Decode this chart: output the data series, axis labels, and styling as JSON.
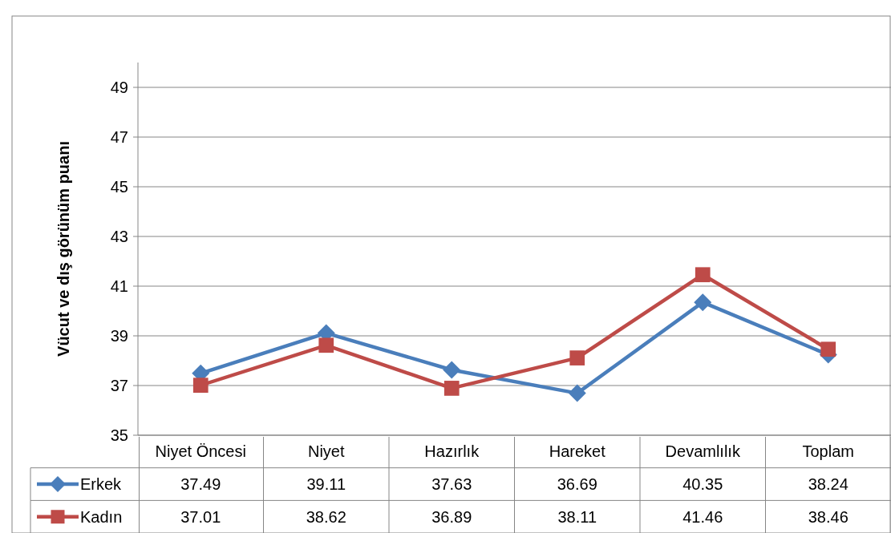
{
  "chart_data": {
    "type": "line",
    "ylabel": "Vücut ve dış görünüm puanı",
    "categories": [
      "Niyet Öncesi",
      "Niyet",
      "Hazırlık",
      "Hareket",
      "Devamlılık",
      "Toplam"
    ],
    "series": [
      {
        "name": "Erkek",
        "color": "#4a7ebb",
        "marker": "diamond",
        "values": [
          37.49,
          39.11,
          37.63,
          36.69,
          40.35,
          38.24
        ]
      },
      {
        "name": "Kadın",
        "color": "#be4b48",
        "marker": "square",
        "values": [
          37.01,
          38.62,
          36.89,
          38.11,
          41.46,
          38.46
        ]
      }
    ],
    "ylim": [
      35,
      50
    ],
    "yticks": [
      35,
      37,
      39,
      41,
      43,
      45,
      47,
      49
    ],
    "grid": "y",
    "legend": "bottom left",
    "data_labels": true,
    "line_style": "solid"
  }
}
